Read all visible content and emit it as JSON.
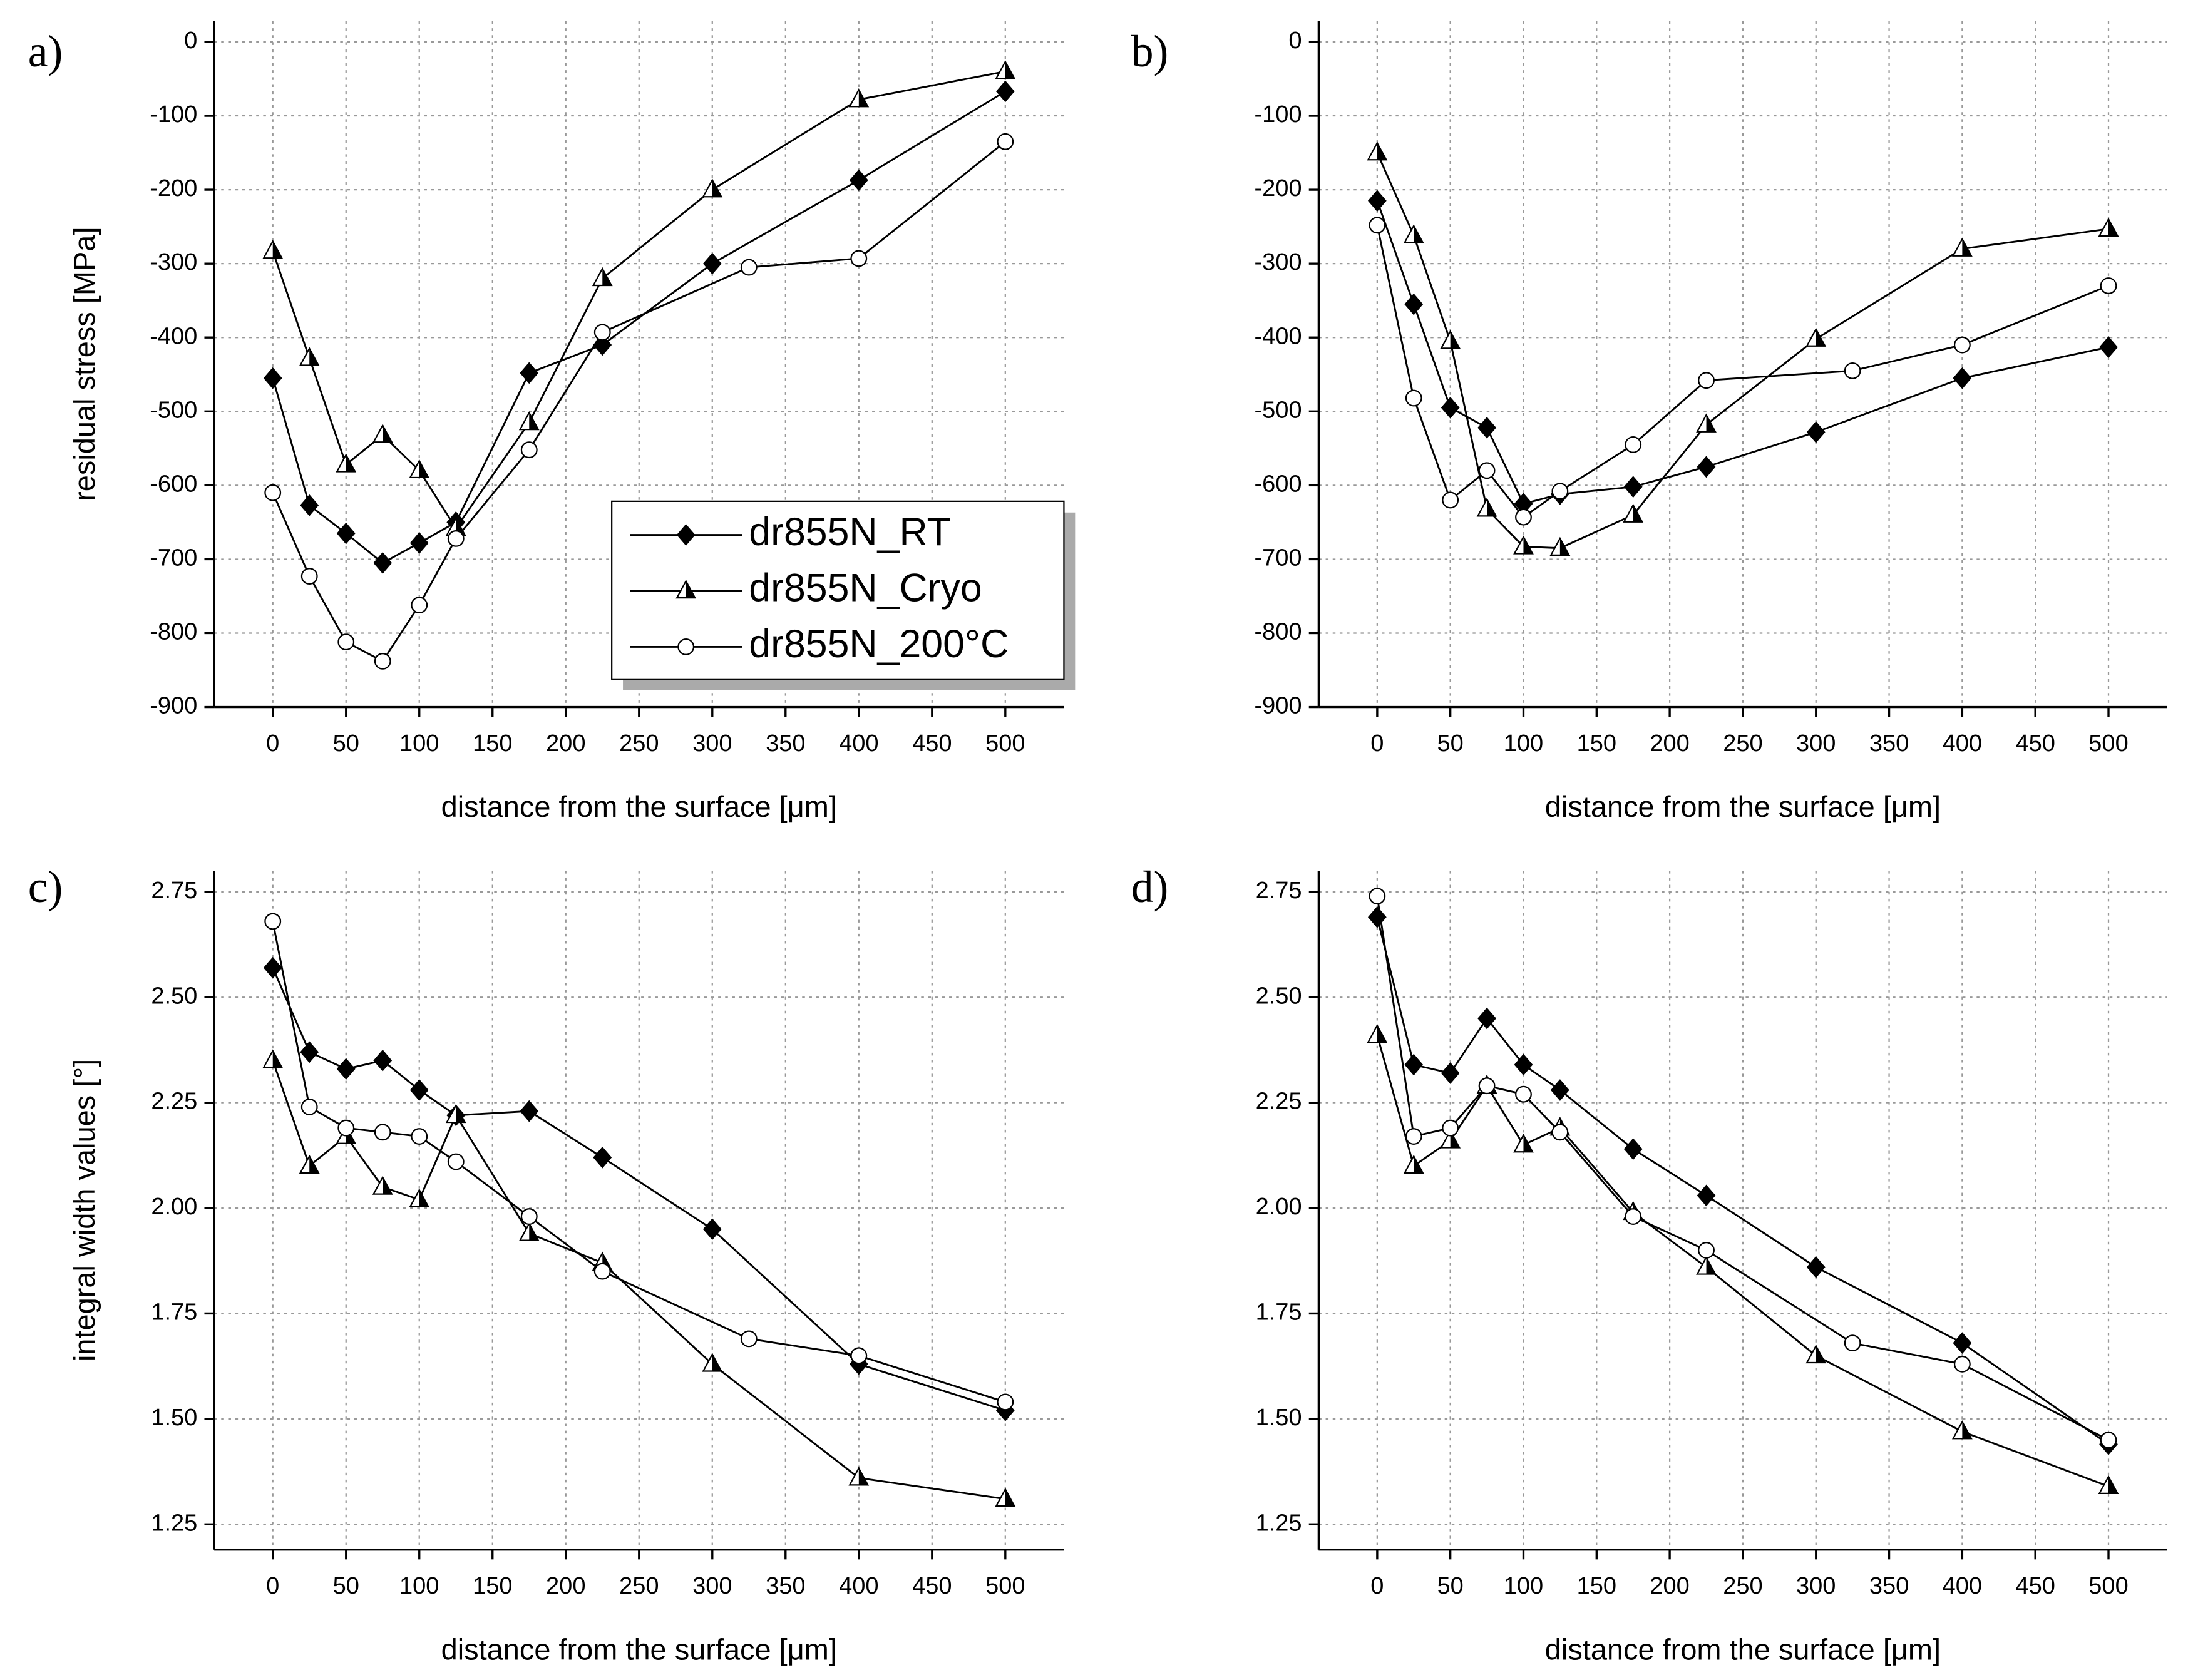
{
  "chart_data": [
    {
      "type": "line",
      "panel_label": "a)",
      "ylabel": "residual stress [MPa]",
      "xlabel": "distance from the surface [μm]",
      "xlim": [
        -40,
        540
      ],
      "xticks": [
        0,
        50,
        100,
        150,
        200,
        250,
        300,
        350,
        400,
        450,
        500
      ],
      "ylim": [
        -900,
        28
      ],
      "yticks": [
        0,
        -100,
        -200,
        -300,
        -400,
        -500,
        -600,
        -700,
        -800,
        -900
      ],
      "grid": true,
      "legend": "right",
      "series": [
        {
          "name": "dr855N_RT",
          "color": "#000000",
          "marker": "diamond",
          "x": [
            0,
            25,
            50,
            75,
            100,
            125,
            175,
            225,
            300,
            400,
            500
          ],
          "values": [
            -455,
            -627,
            -665,
            -705,
            -678,
            -650,
            -448,
            -410,
            -300,
            -187,
            -67
          ]
        },
        {
          "name": "dr855N_Cryo",
          "color": "#000000",
          "marker": "triangle",
          "x": [
            0,
            25,
            50,
            75,
            100,
            125,
            175,
            225,
            300,
            400,
            500
          ],
          "values": [
            -283,
            -428,
            -572,
            -532,
            -580,
            -658,
            -515,
            -320,
            -200,
            -78,
            -40
          ]
        },
        {
          "name": "dr855N_200°C",
          "color": "#000000",
          "marker": "circle",
          "x": [
            0,
            25,
            50,
            75,
            100,
            125,
            175,
            225,
            325,
            400,
            500
          ],
          "values": [
            -610,
            -723,
            -812,
            -838,
            -762,
            -672,
            -552,
            -393,
            -305,
            -293,
            -135
          ]
        }
      ]
    },
    {
      "type": "line",
      "panel_label": "b)",
      "xlabel": "distance from the surface [μm]",
      "xlim": [
        -40,
        540
      ],
      "xticks": [
        0,
        50,
        100,
        150,
        200,
        250,
        300,
        350,
        400,
        450,
        500
      ],
      "ylim": [
        -900,
        28
      ],
      "yticks": [
        0,
        -100,
        -200,
        -300,
        -400,
        -500,
        -600,
        -700,
        -800,
        -900
      ],
      "grid": true,
      "series": [
        {
          "color": "#000000",
          "marker": "diamond",
          "x": [
            0,
            25,
            50,
            75,
            100,
            125,
            175,
            225,
            300,
            400,
            500
          ],
          "values": [
            -215,
            -355,
            -495,
            -522,
            -625,
            -612,
            -602,
            -575,
            -528,
            -455,
            -413
          ]
        },
        {
          "color": "#000000",
          "marker": "triangle",
          "x": [
            0,
            25,
            50,
            75,
            100,
            125,
            175,
            225,
            300,
            400,
            500
          ],
          "values": [
            -150,
            -262,
            -405,
            -632,
            -683,
            -685,
            -640,
            -518,
            -402,
            -280,
            -253
          ]
        },
        {
          "color": "#000000",
          "marker": "circle",
          "x": [
            0,
            25,
            50,
            75,
            100,
            125,
            175,
            225,
            325,
            400,
            500
          ],
          "values": [
            -248,
            -482,
            -620,
            -580,
            -643,
            -608,
            -545,
            -458,
            -445,
            -410,
            -330
          ]
        }
      ]
    },
    {
      "type": "line",
      "panel_label": "c)",
      "ylabel": "integral width values [°]",
      "xlabel": "distance from the surface [μm]",
      "xlim": [
        -40,
        540
      ],
      "xticks": [
        0,
        50,
        100,
        150,
        200,
        250,
        300,
        350,
        400,
        450,
        500
      ],
      "ylim": [
        1.19,
        2.8
      ],
      "yticks": [
        2.75,
        {
          "value": 2.5,
          "label": "2.50"
        },
        2.25,
        {
          "value": 2,
          "label": "2.00"
        },
        1.75,
        {
          "value": 1.5,
          "label": "1.50"
        },
        1.25
      ],
      "grid": true,
      "series": [
        {
          "color": "#000000",
          "marker": "diamond",
          "x": [
            0,
            25,
            50,
            75,
            100,
            125,
            175,
            225,
            300,
            400,
            500
          ],
          "values": [
            2.57,
            2.37,
            2.33,
            2.35,
            2.28,
            2.22,
            2.23,
            2.12,
            1.95,
            1.63,
            1.52
          ]
        },
        {
          "color": "#000000",
          "marker": "triangle",
          "x": [
            0,
            25,
            50,
            75,
            100,
            125,
            175,
            225,
            300,
            400,
            500
          ],
          "values": [
            2.35,
            2.1,
            2.17,
            2.05,
            2.02,
            2.22,
            1.94,
            1.87,
            1.63,
            1.36,
            1.31
          ]
        },
        {
          "color": "#000000",
          "marker": "circle",
          "x": [
            0,
            25,
            50,
            75,
            100,
            125,
            175,
            225,
            325,
            400,
            500
          ],
          "values": [
            2.68,
            2.24,
            2.19,
            2.18,
            2.17,
            2.11,
            1.98,
            1.85,
            1.69,
            1.65,
            1.54
          ]
        }
      ]
    },
    {
      "type": "line",
      "panel_label": "d)",
      "xlabel": "distance from the surface [μm]",
      "xlim": [
        -40,
        540
      ],
      "xticks": [
        0,
        50,
        100,
        150,
        200,
        250,
        300,
        350,
        400,
        450,
        500
      ],
      "ylim": [
        1.19,
        2.8
      ],
      "yticks": [
        2.75,
        {
          "value": 2.5,
          "label": "2.50"
        },
        2.25,
        {
          "value": 2,
          "label": "2.00"
        },
        1.75,
        {
          "value": 1.5,
          "label": "1.50"
        },
        1.25
      ],
      "grid": true,
      "series": [
        {
          "color": "#000000",
          "marker": "diamond",
          "x": [
            0,
            25,
            50,
            75,
            100,
            125,
            175,
            225,
            300,
            400,
            500
          ],
          "values": [
            2.69,
            2.34,
            2.32,
            2.45,
            2.34,
            2.28,
            2.14,
            2.03,
            1.86,
            1.68,
            1.44
          ]
        },
        {
          "color": "#000000",
          "marker": "triangle",
          "x": [
            0,
            25,
            50,
            75,
            100,
            125,
            175,
            225,
            300,
            400,
            500
          ],
          "values": [
            2.41,
            2.1,
            2.16,
            2.29,
            2.15,
            2.19,
            1.99,
            1.86,
            1.65,
            1.47,
            1.34
          ]
        },
        {
          "color": "#000000",
          "marker": "circle",
          "x": [
            0,
            25,
            50,
            75,
            100,
            125,
            175,
            225,
            325,
            400,
            500
          ],
          "values": [
            2.74,
            2.17,
            2.19,
            2.29,
            2.27,
            2.18,
            1.98,
            1.9,
            1.68,
            1.63,
            1.45
          ]
        }
      ]
    }
  ]
}
